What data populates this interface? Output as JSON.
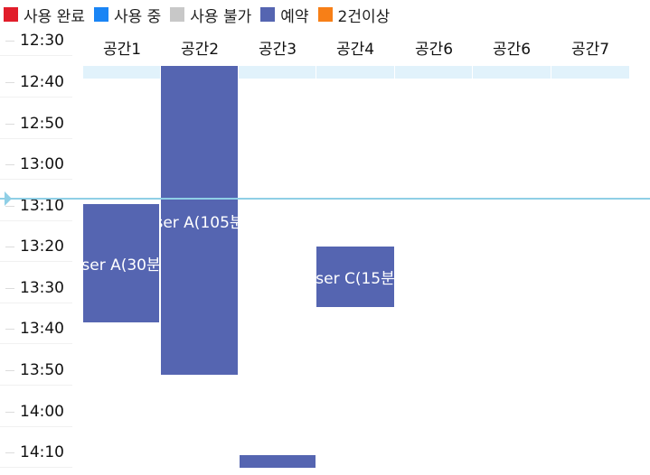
{
  "legend": {
    "items": [
      {
        "label": "사용 완료",
        "color": "#e11d2a"
      },
      {
        "label": "사용 중",
        "color": "#1a85f5"
      },
      {
        "label": "사용 불가",
        "color": "#c8c8c8"
      },
      {
        "label": "예약",
        "color": "#5565b1"
      },
      {
        "label": "2건이상",
        "color": "#f77f17"
      }
    ]
  },
  "timeline": {
    "times": [
      "12:30",
      "12:40",
      "12:50",
      "13:00",
      "13:10",
      "13:20",
      "13:30",
      "13:40",
      "13:50",
      "14:00",
      "14:10"
    ]
  },
  "columns": [
    "공간1",
    "공간2",
    "공간3",
    "공간4",
    "공간6",
    "공간6",
    "공간7"
  ],
  "bookings": [
    {
      "column_index": 0,
      "text": "ser A(30분"
    },
    {
      "column_index": 1,
      "text": "ser A(105분"
    },
    {
      "column_index": 3,
      "text": "ser C(15분"
    },
    {
      "column_index": 2,
      "text": ""
    }
  ],
  "colors": {
    "reservation": "#5565b1",
    "header_bar": "#e1f2fb",
    "now_line": "#8fcfe6"
  }
}
